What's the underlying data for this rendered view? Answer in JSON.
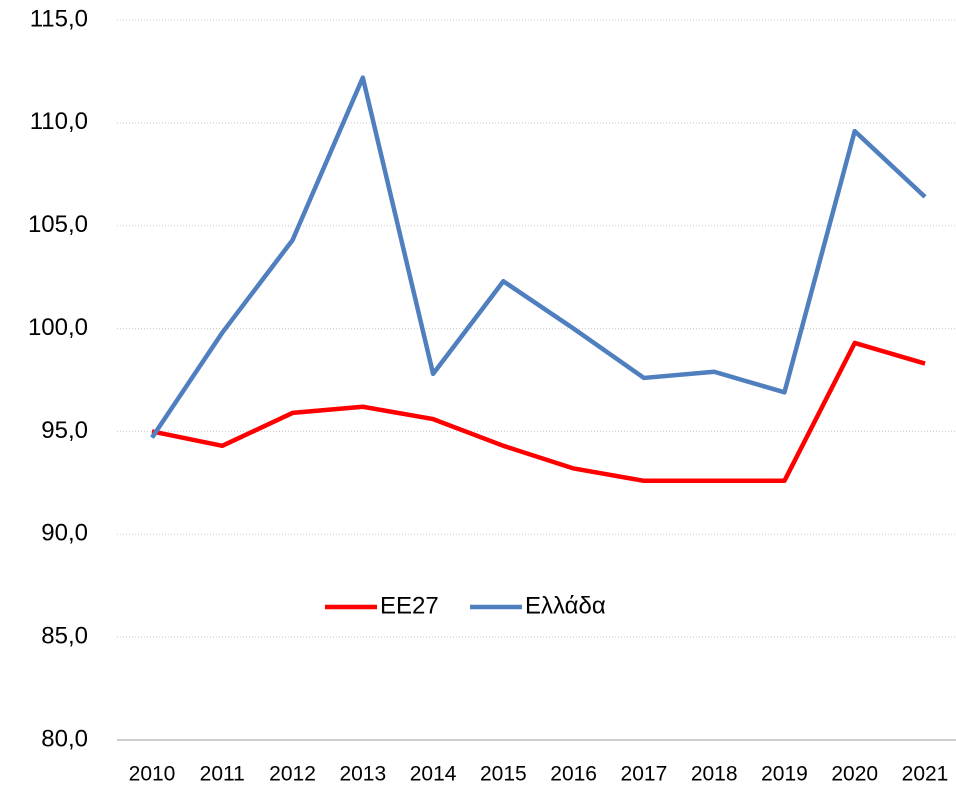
{
  "chart_data": {
    "type": "line",
    "categories": [
      "2010",
      "2011",
      "2012",
      "2013",
      "2014",
      "2015",
      "2016",
      "2017",
      "2018",
      "2019",
      "2020",
      "2021"
    ],
    "series": [
      {
        "name": "EE27",
        "color": "#ff0000",
        "values": [
          95.0,
          94.3,
          95.9,
          96.2,
          95.6,
          94.3,
          93.2,
          92.6,
          92.6,
          92.6,
          99.3,
          98.3
        ]
      },
      {
        "name": "Ελλάδα",
        "color": "#4f7fbe",
        "values": [
          94.7,
          99.8,
          104.3,
          112.2,
          97.8,
          102.3,
          100.0,
          97.6,
          97.9,
          96.9,
          109.6,
          106.4
        ]
      }
    ],
    "ylim": [
      80,
      115
    ],
    "yticks": [
      {
        "value": 80,
        "label": "80,0"
      },
      {
        "value": 85,
        "label": "85,0"
      },
      {
        "value": 90,
        "label": "90,0"
      },
      {
        "value": 95,
        "label": "95,0"
      },
      {
        "value": 100,
        "label": "100,0"
      },
      {
        "value": 105,
        "label": "105,0"
      },
      {
        "value": 110,
        "label": "110,0"
      },
      {
        "value": 115,
        "label": "115,0"
      }
    ],
    "grid": true,
    "legend": "center"
  }
}
